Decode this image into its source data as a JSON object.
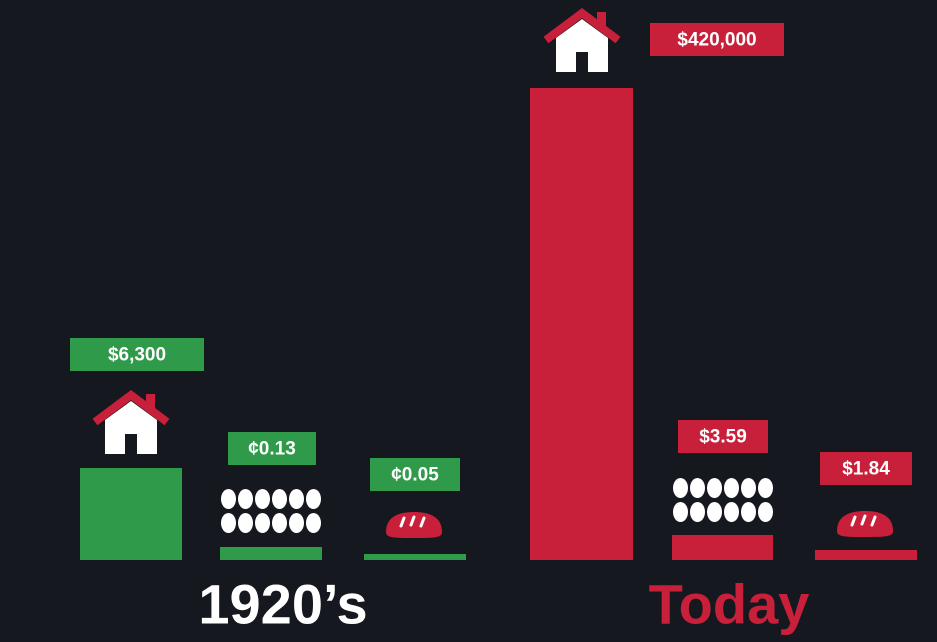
{
  "groups": [
    {
      "label": "1920’s",
      "items": [
        {
          "price": "$6,300"
        },
        {
          "price": "¢0.13"
        },
        {
          "price": "¢0.05"
        }
      ]
    },
    {
      "label": "Today",
      "items": [
        {
          "price": "$420,000"
        },
        {
          "price": "$3.59"
        },
        {
          "price": "$1.84"
        }
      ]
    }
  ]
}
